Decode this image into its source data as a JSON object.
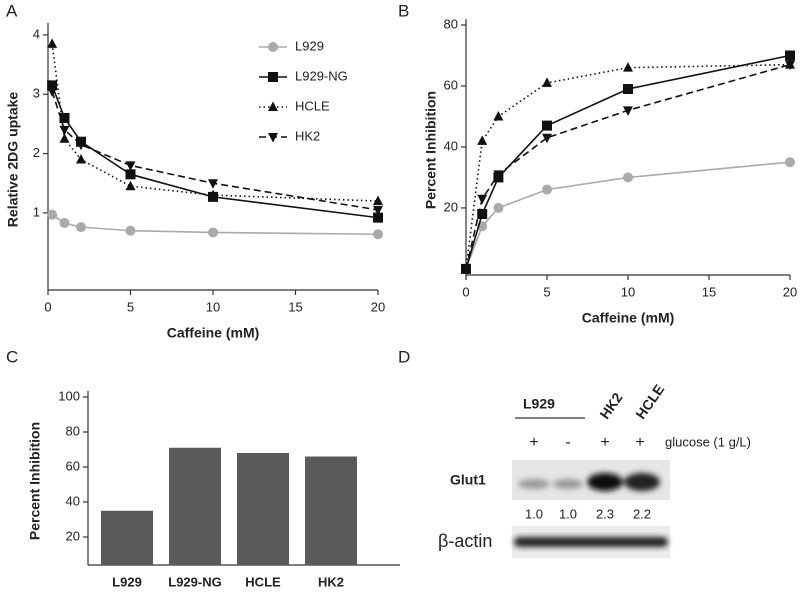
{
  "panels": [
    "A",
    "B",
    "C",
    "D"
  ],
  "chart_data": [
    {
      "type": "line",
      "xlabel": "Caffeine (mM)",
      "ylabel": "Relative 2DG uptake",
      "x": [
        0.25,
        1,
        2,
        5,
        10,
        20
      ],
      "xlim": [
        0,
        20
      ],
      "xticks": [
        0,
        5,
        10,
        15,
        20
      ],
      "ylim": [
        -0.3,
        4.1
      ],
      "yticks": [
        1,
        2,
        3,
        4
      ],
      "legend": "upper right",
      "series": [
        {
          "name": "L929",
          "color": "#aaaaaa",
          "marker": "circle",
          "dash": "solid",
          "values": [
            0.97,
            0.83,
            0.76,
            0.7,
            0.67,
            0.64
          ]
        },
        {
          "name": "L929-NG",
          "color": "#111111",
          "marker": "square",
          "dash": "solid",
          "values": [
            3.15,
            2.6,
            2.2,
            1.65,
            1.27,
            0.92
          ]
        },
        {
          "name": "HCLE",
          "color": "#111111",
          "marker": "triangle",
          "dash": "dotted",
          "values": [
            3.85,
            2.25,
            1.9,
            1.45,
            1.3,
            1.2
          ]
        },
        {
          "name": "HK2",
          "color": "#111111",
          "marker": "triangle-down",
          "dash": "dashed",
          "values": [
            3.05,
            2.4,
            2.15,
            1.8,
            1.5,
            1.05
          ]
        }
      ]
    },
    {
      "type": "line",
      "xlabel": "Caffeine (mM)",
      "ylabel": "Percent Inhibition",
      "x": [
        0,
        1,
        2,
        5,
        10,
        20
      ],
      "xlim": [
        0,
        20
      ],
      "xticks": [
        0,
        5,
        10,
        15,
        20
      ],
      "ylim": [
        -2,
        80
      ],
      "yticks": [
        20,
        40,
        60,
        80
      ],
      "series": [
        {
          "color": "#aaaaaa",
          "marker": "circle",
          "dash": "solid",
          "values": [
            0,
            14,
            20,
            26,
            30,
            35
          ]
        },
        {
          "color": "#111111",
          "marker": "square",
          "dash": "solid",
          "values": [
            0,
            18,
            30,
            47,
            59,
            70
          ]
        },
        {
          "color": "#111111",
          "marker": "triangle",
          "dash": "dotted",
          "values": [
            0,
            42,
            50,
            61,
            66,
            67
          ]
        },
        {
          "color": "#111111",
          "marker": "triangle-down",
          "dash": "dashed",
          "values": [
            0,
            23,
            31,
            43,
            52,
            67
          ]
        }
      ]
    },
    {
      "type": "bar",
      "ylabel": "Percent Inhibition",
      "categories": [
        "L929",
        "L929-NG",
        "HCLE",
        "HK2"
      ],
      "values": [
        35,
        71,
        68,
        66
      ],
      "color": "#5a5a5a",
      "ylim": [
        4,
        100
      ],
      "yticks": [
        20,
        40,
        60,
        80,
        100
      ]
    }
  ],
  "blot": {
    "groups": [
      "L929",
      "HK2",
      "HCLE"
    ],
    "glucose": [
      "+",
      "-",
      "+",
      "+"
    ],
    "glucose_label": "glucose (1 g/L)",
    "rows": [
      "Glut1",
      "β-actin"
    ],
    "ratios": [
      "1.0",
      "1.0",
      "2.3",
      "2.2"
    ]
  }
}
